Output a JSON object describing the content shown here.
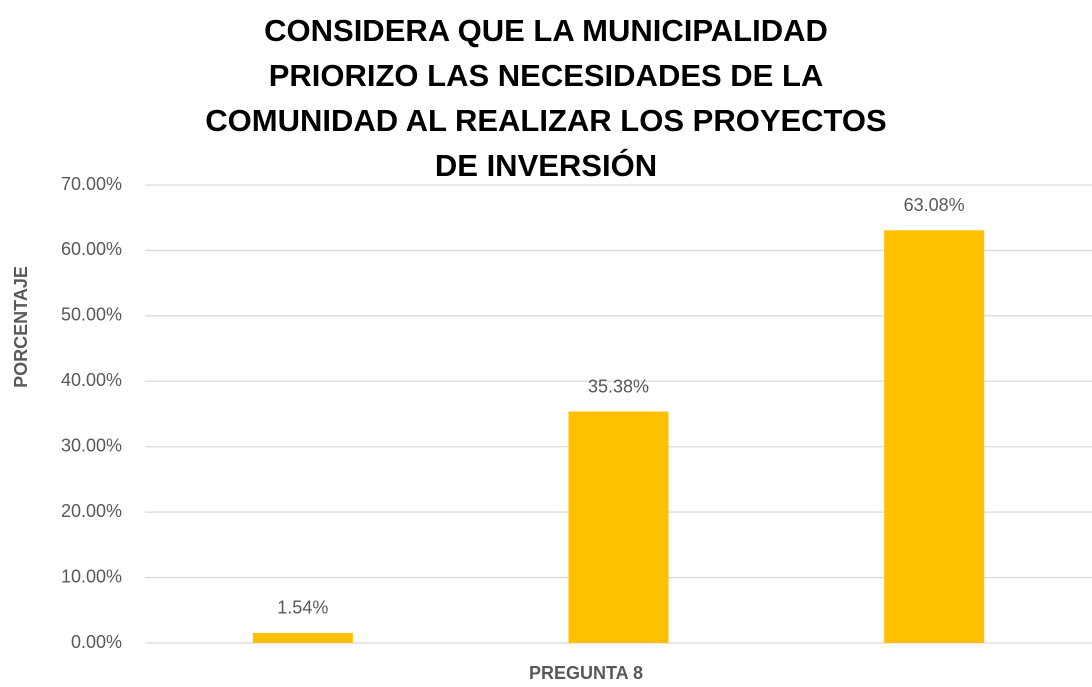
{
  "chart_data": {
    "type": "bar",
    "title": "CONSIDERA QUE LA MUNICIPALIDAD PRIORIZO LAS NECESIDADES DE LA COMUNIDAD AL REALIZAR LOS PROYECTOS DE INVERSIÓN",
    "x_label": "PREGUNTA 8",
    "y_label": "PORCENTAJE",
    "categories": [
      null,
      null,
      null
    ],
    "values": [
      1.54,
      35.38,
      63.08
    ],
    "value_labels": [
      "1.54%",
      "35.38%",
      "63.08%"
    ],
    "color": "#ffc000",
    "ylim": [
      0,
      70
    ],
    "yticks": [
      {
        "value": 0,
        "label": "0.00%"
      },
      {
        "value": 10,
        "label": "10.00%"
      },
      {
        "value": 20,
        "label": "20.00%"
      },
      {
        "value": 30,
        "label": "30.00%"
      },
      {
        "value": 40,
        "label": "40.00%"
      },
      {
        "value": 50,
        "label": "50.00%"
      },
      {
        "value": 60,
        "label": "60.00%"
      },
      {
        "value": 70,
        "label": "70.00%"
      }
    ],
    "grid": true
  }
}
